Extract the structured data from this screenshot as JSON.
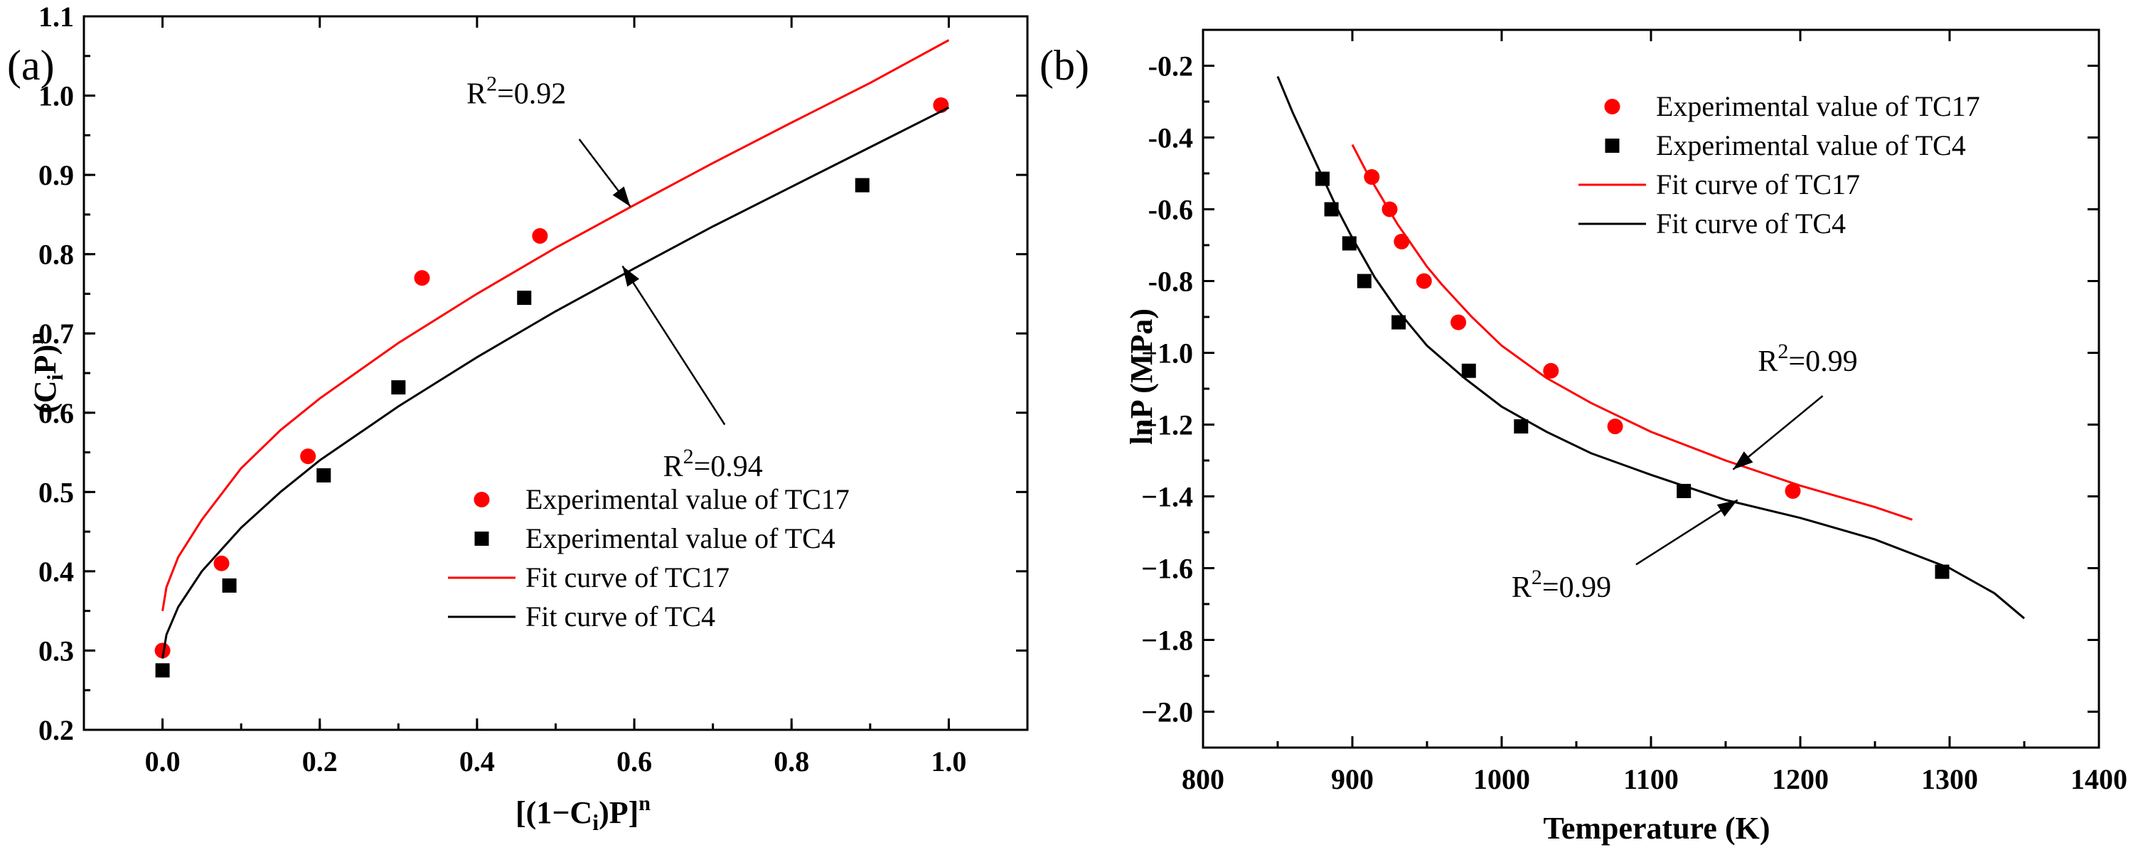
{
  "chart_data": [
    {
      "panel_label": "(a)",
      "type": "scatter",
      "xlabel": "[(1−C",
      "xlabel_sub": "i",
      "xlabel_end": ")P]",
      "xlabel_sup": "n",
      "ylabel": "(C",
      "ylabel_sub": "i",
      "ylabel_end": "P)",
      "ylabel_sup": "n",
      "xlim": [
        -0.1,
        1.1
      ],
      "ylim": [
        0.2,
        1.1
      ],
      "xticks": [
        0.0,
        0.2,
        0.4,
        0.6,
        0.8,
        1.0
      ],
      "xtick_labels": [
        "0.0",
        "0.2",
        "0.4",
        "0.6",
        "0.8",
        "1.0"
      ],
      "yticks": [
        0.2,
        0.3,
        0.4,
        0.5,
        0.6,
        0.7,
        0.8,
        0.9,
        1.0,
        1.1
      ],
      "ytick_labels": [
        "0.2",
        "0.3",
        "0.4",
        "0.5",
        "0.6",
        "0.7",
        "0.8",
        "0.9",
        "1.0",
        "1.1"
      ],
      "legend_position": "bottom-center",
      "series": [
        {
          "name": "Experimental value of TC17",
          "kind": "scatter",
          "marker": "circle",
          "color": "#ff0000",
          "points": [
            [
              0.0,
              0.3
            ],
            [
              0.075,
              0.41
            ],
            [
              0.185,
              0.545
            ],
            [
              0.33,
              0.77
            ],
            [
              0.48,
              0.823
            ],
            [
              0.99,
              0.988
            ]
          ]
        },
        {
          "name": "Experimental value of TC4",
          "kind": "scatter",
          "marker": "square",
          "color": "#000000",
          "points": [
            [
              0.0,
              0.275
            ],
            [
              0.085,
              0.382
            ],
            [
              0.205,
              0.521
            ],
            [
              0.3,
              0.632
            ],
            [
              0.46,
              0.745
            ],
            [
              0.89,
              0.887
            ]
          ]
        },
        {
          "name": "Fit curve of TC17",
          "kind": "line",
          "color": "#ff0000",
          "points": [
            [
              0.0,
              0.35
            ],
            [
              0.005,
              0.38
            ],
            [
              0.02,
              0.418
            ],
            [
              0.05,
              0.465
            ],
            [
              0.1,
              0.53
            ],
            [
              0.15,
              0.578
            ],
            [
              0.2,
              0.618
            ],
            [
              0.3,
              0.688
            ],
            [
              0.4,
              0.75
            ],
            [
              0.5,
              0.808
            ],
            [
              0.6,
              0.862
            ],
            [
              0.7,
              0.915
            ],
            [
              0.8,
              0.966
            ],
            [
              0.9,
              1.016
            ],
            [
              1.0,
              1.07
            ]
          ]
        },
        {
          "name": "Fit curve of TC4",
          "kind": "line",
          "color": "#000000",
          "points": [
            [
              0.0,
              0.29
            ],
            [
              0.005,
              0.32
            ],
            [
              0.02,
              0.355
            ],
            [
              0.05,
              0.4
            ],
            [
              0.1,
              0.455
            ],
            [
              0.15,
              0.5
            ],
            [
              0.2,
              0.54
            ],
            [
              0.3,
              0.608
            ],
            [
              0.4,
              0.67
            ],
            [
              0.5,
              0.728
            ],
            [
              0.6,
              0.782
            ],
            [
              0.7,
              0.835
            ],
            [
              0.8,
              0.885
            ],
            [
              0.9,
              0.935
            ],
            [
              1.0,
              0.985
            ]
          ]
        }
      ],
      "annotations": [
        {
          "text": "R",
          "sup": "2",
          "tail": "=0.92",
          "text_at": [
            0.45,
            0.99
          ],
          "arrow_from": [
            0.53,
            0.945
          ],
          "arrow_to": [
            0.595,
            0.86
          ]
        },
        {
          "text": "R",
          "sup": "2",
          "tail": "=0.94",
          "text_at": [
            0.7,
            0.52
          ],
          "arrow_from": [
            0.715,
            0.585
          ],
          "arrow_to": [
            0.585,
            0.785
          ]
        }
      ]
    },
    {
      "panel_label": "(b)",
      "type": "scatter",
      "xlabel": "Temperature (K)",
      "ylabel": "lnP (MPa)",
      "xlim": [
        800,
        1400
      ],
      "ylim": [
        -2.1,
        -0.1
      ],
      "xticks": [
        800,
        900,
        1000,
        1100,
        1200,
        1300,
        1400
      ],
      "xtick_labels": [
        "800",
        "900",
        "1000",
        "1100",
        "1200",
        "1300",
        "1400"
      ],
      "yticks": [
        -0.2,
        -0.4,
        -0.6,
        -0.8,
        -1.0,
        -1.2,
        -1.4,
        -1.6,
        -1.8,
        -2.0
      ],
      "ytick_labels": [
        "-0.2",
        "-0.4",
        "-0.6",
        "-0.8",
        "−1.0",
        "−1.2",
        "−1.4",
        "−1.6",
        "−1.8",
        "−2.0"
      ],
      "legend_position": "top-center",
      "series": [
        {
          "name": "Experimental value of TC17",
          "kind": "scatter",
          "marker": "circle",
          "color": "#ff0000",
          "points": [
            [
              913,
              -0.51
            ],
            [
              925,
              -0.6
            ],
            [
              933,
              -0.69
            ],
            [
              948,
              -0.8
            ],
            [
              971,
              -0.915
            ],
            [
              1033,
              -1.05
            ],
            [
              1076,
              -1.205
            ],
            [
              1195,
              -1.385
            ]
          ]
        },
        {
          "name": "Experimental value of TC4",
          "kind": "scatter",
          "marker": "square",
          "color": "#000000",
          "points": [
            [
              880,
              -0.515
            ],
            [
              886,
              -0.6
            ],
            [
              898,
              -0.695
            ],
            [
              908,
              -0.8
            ],
            [
              931,
              -0.915
            ],
            [
              978,
              -1.05
            ],
            [
              1013,
              -1.205
            ],
            [
              1122,
              -1.385
            ],
            [
              1295,
              -1.61
            ]
          ]
        },
        {
          "name": "Fit curve of TC17",
          "kind": "line",
          "color": "#ff0000",
          "points": [
            [
              900,
              -0.42
            ],
            [
              910,
              -0.5
            ],
            [
              920,
              -0.57
            ],
            [
              930,
              -0.64
            ],
            [
              940,
              -0.7
            ],
            [
              950,
              -0.76
            ],
            [
              960,
              -0.81
            ],
            [
              980,
              -0.9
            ],
            [
              1000,
              -0.98
            ],
            [
              1030,
              -1.07
            ],
            [
              1060,
              -1.14
            ],
            [
              1100,
              -1.22
            ],
            [
              1150,
              -1.3
            ],
            [
              1200,
              -1.37
            ],
            [
              1250,
              -1.43
            ],
            [
              1275,
              -1.465
            ]
          ]
        },
        {
          "name": "Fit curve of TC4",
          "kind": "line",
          "color": "#000000",
          "points": [
            [
              850,
              -0.23
            ],
            [
              860,
              -0.33
            ],
            [
              870,
              -0.42
            ],
            [
              880,
              -0.51
            ],
            [
              890,
              -0.6
            ],
            [
              900,
              -0.68
            ],
            [
              915,
              -0.79
            ],
            [
              930,
              -0.88
            ],
            [
              950,
              -0.98
            ],
            [
              975,
              -1.07
            ],
            [
              1000,
              -1.15
            ],
            [
              1030,
              -1.22
            ],
            [
              1060,
              -1.28
            ],
            [
              1100,
              -1.34
            ],
            [
              1150,
              -1.41
            ],
            [
              1200,
              -1.46
            ],
            [
              1250,
              -1.52
            ],
            [
              1300,
              -1.6
            ],
            [
              1330,
              -1.67
            ],
            [
              1350,
              -1.74
            ]
          ]
        }
      ],
      "annotations": [
        {
          "text": "R",
          "sup": "2",
          "tail": "=0.99",
          "text_at": [
            1205,
            -1.05
          ],
          "arrow_from": [
            1215,
            -1.12
          ],
          "arrow_to": [
            1155,
            -1.325
          ]
        },
        {
          "text": "R",
          "sup": "2",
          "tail": "=0.99",
          "text_at": [
            1040,
            -1.68
          ],
          "arrow_from": [
            1090,
            -1.59
          ],
          "arrow_to": [
            1158,
            -1.41
          ]
        }
      ]
    }
  ]
}
